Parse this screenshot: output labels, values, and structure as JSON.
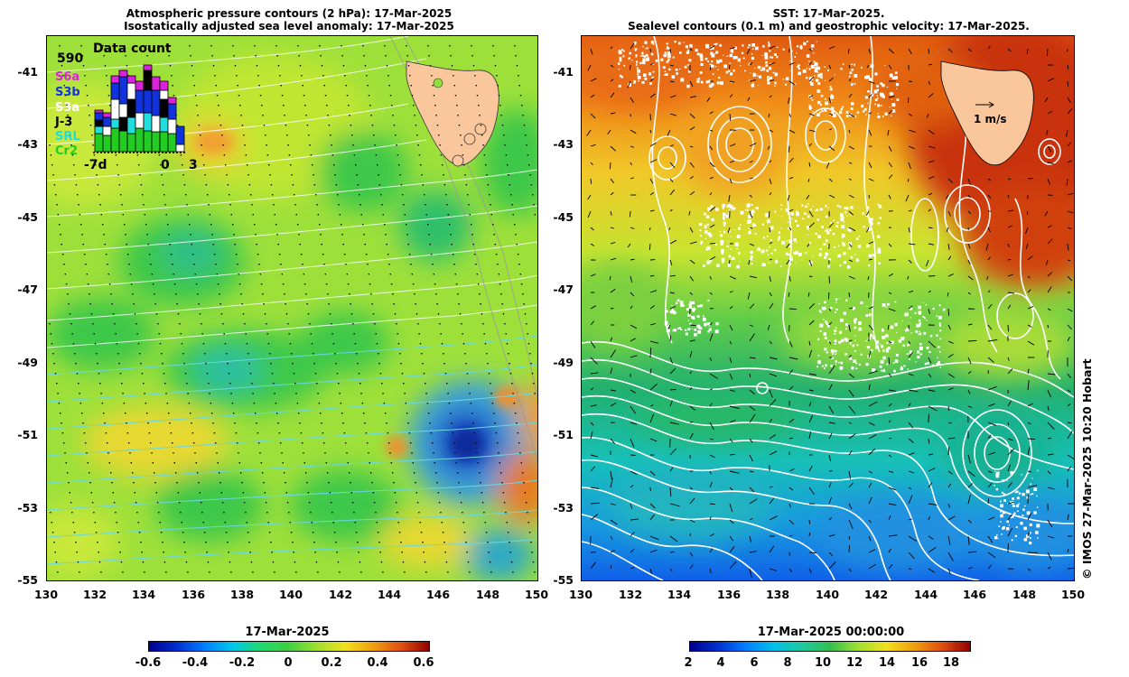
{
  "left_panel": {
    "title_line1": "Atmospheric pressure contours (2 hPa): 17-Mar-2025",
    "title_line2": "Isostatically adjusted sea level anomaly: 17-Mar-2025"
  },
  "right_panel": {
    "title_line1": "SST: 17-Mar-2025.",
    "title_line2": "Sealevel contours (0.1 m) and geostrophic velocity: 17-Mar-2025.",
    "velocity_scale_label": "1 m/s"
  },
  "axes": {
    "lat_ticks": [
      "-41",
      "-43",
      "-45",
      "-47",
      "-49",
      "-51",
      "-53",
      "-55"
    ],
    "lon_ticks": [
      "130",
      "132",
      "134",
      "136",
      "138",
      "140",
      "142",
      "144",
      "146",
      "148",
      "150"
    ]
  },
  "data_count": {
    "title": "Data count",
    "max_value": "590",
    "missions": [
      {
        "name": "S6a",
        "color": "#dd22dd"
      },
      {
        "name": "S3b",
        "color": "#1133dd"
      },
      {
        "name": "S3a",
        "color": "#ffffff"
      },
      {
        "name": "J-3",
        "color": "#000000"
      },
      {
        "name": "SRL",
        "color": "#22dddd"
      },
      {
        "name": "Cr2",
        "color": "#22cc22"
      }
    ],
    "x_labels": {
      "start": "-7d",
      "zero": "0",
      "end": "3"
    }
  },
  "colorbars": {
    "sla": {
      "title": "17-Mar-2025",
      "labels": [
        "-0.6",
        "-0.4",
        "-0.2",
        "0",
        "0.2",
        "0.4",
        "0.6"
      ]
    },
    "sst": {
      "title": "17-Mar-2025 00:00:00",
      "labels": [
        "2",
        "4",
        "6",
        "8",
        "10",
        "12",
        "14",
        "16",
        "18"
      ]
    }
  },
  "credit": "© IMOS 27-Mar-2025 10:20 Hobart",
  "colors": {
    "land": "#f9c79b",
    "sla_background": "#8fe23a",
    "sst_warm": "#d83a10",
    "sst_cold": "#1070e0",
    "contour_white": "#ffffff",
    "contour_cyan": "#6ad8e0"
  }
}
